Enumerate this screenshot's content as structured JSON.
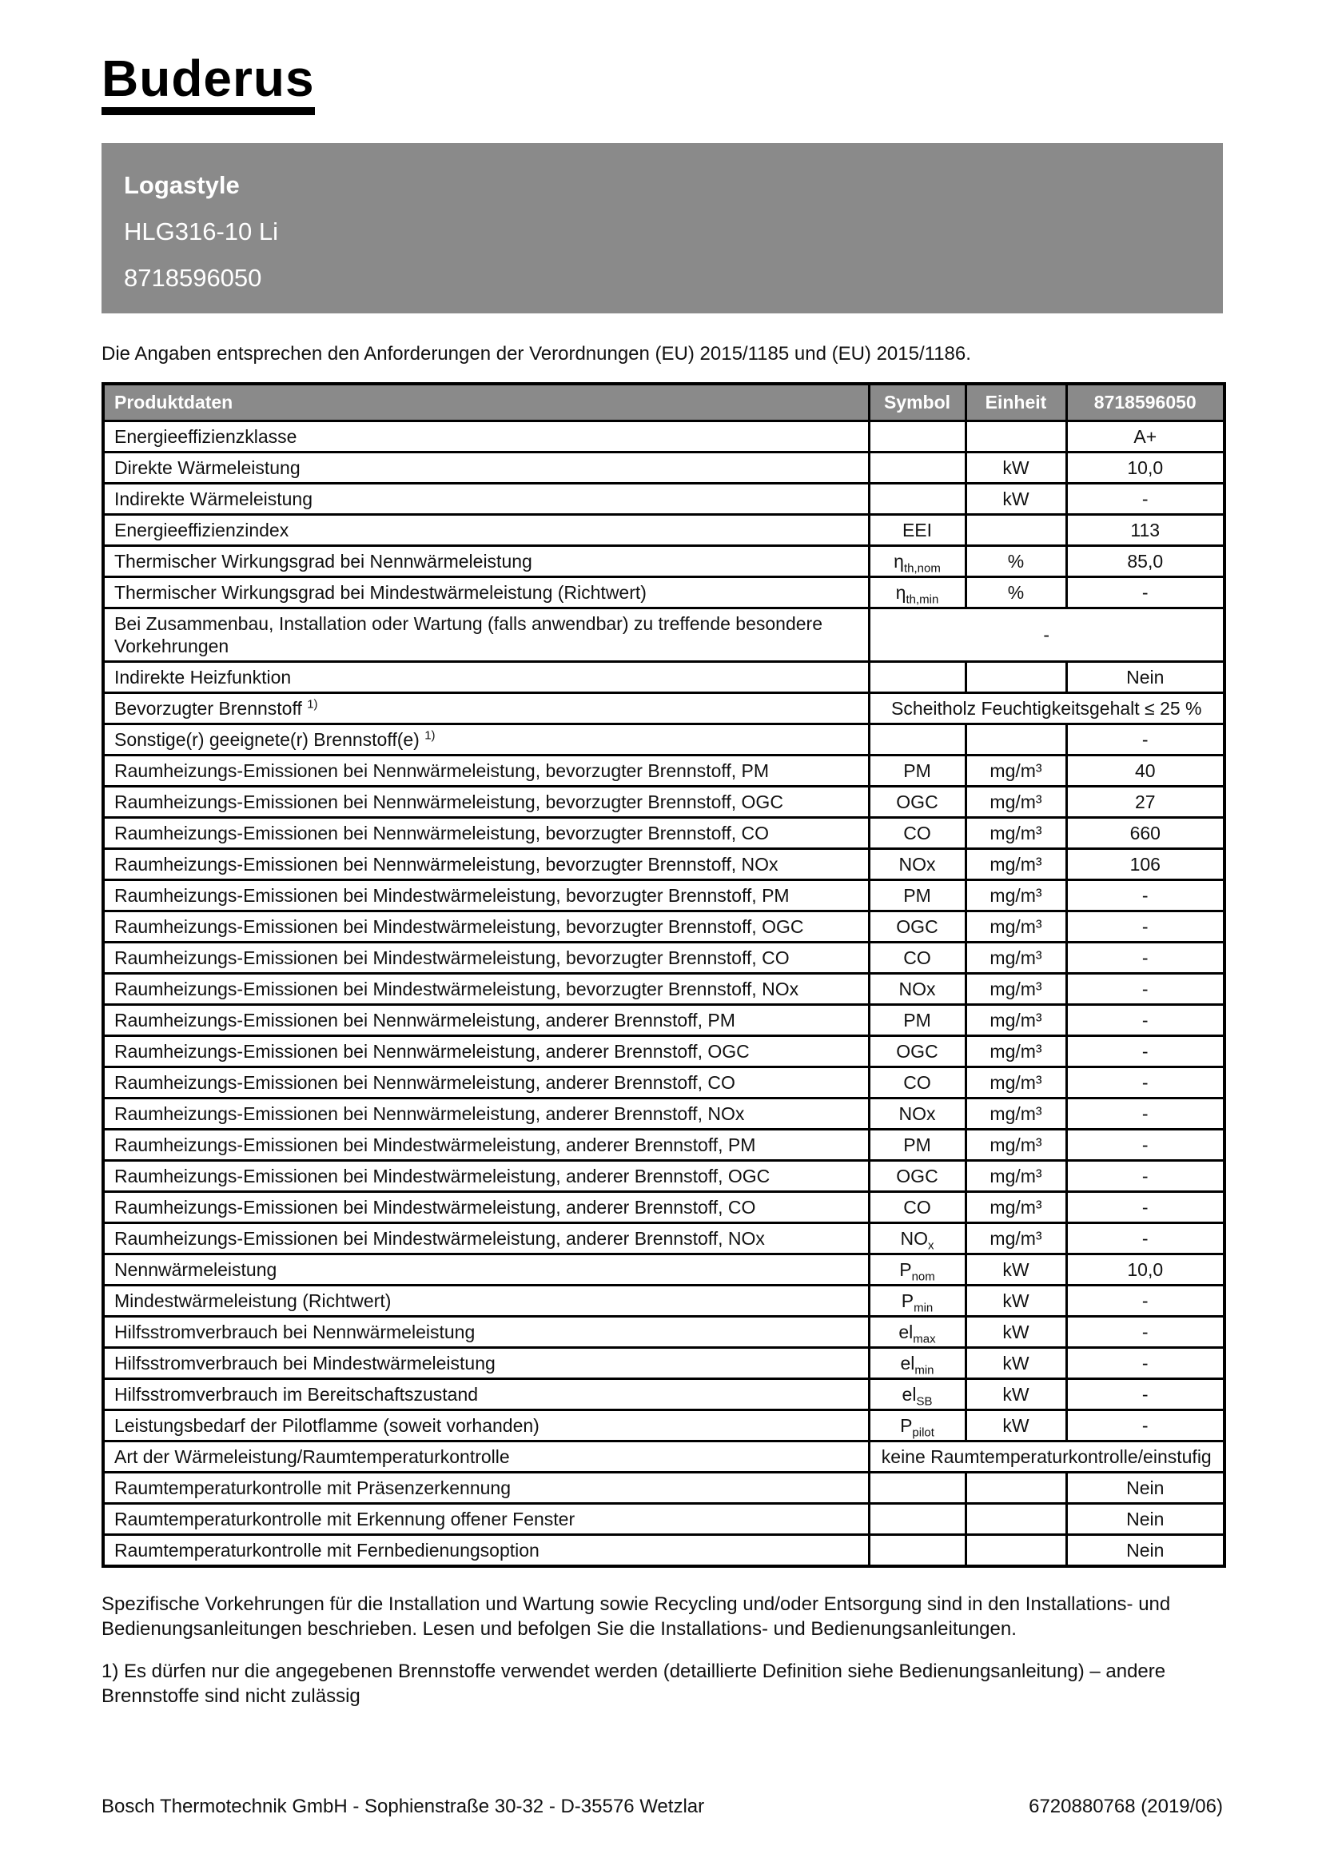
{
  "brand": {
    "logo_text": "Buderus"
  },
  "colors": {
    "header_gray": "#8a8a8a",
    "text": "#111111",
    "border": "#000000"
  },
  "product": {
    "series": "Logastyle",
    "model": "HLG316-10 Li",
    "order_number": "8718596050"
  },
  "intro": "Die Angaben entsprechen den Anforderungen der Verordnungen (EU) 2015/1185 und (EU) 2015/1186.",
  "table": {
    "headers": [
      "Produktdaten",
      "Symbol",
      "Einheit",
      "8718596050"
    ],
    "rows": [
      {
        "label": "Energieeffizienzklasse",
        "symbol": "",
        "symbol_sub": "",
        "unit": "",
        "value": "A+"
      },
      {
        "label": "Direkte Wärmeleistung",
        "symbol": "",
        "symbol_sub": "",
        "unit": "kW",
        "value": "10,0"
      },
      {
        "label": "Indirekte Wärmeleistung",
        "symbol": "",
        "symbol_sub": "",
        "unit": "kW",
        "value": "-"
      },
      {
        "label": "Energieeffizienzindex",
        "symbol": "EEI",
        "symbol_sub": "",
        "unit": "",
        "value": "113"
      },
      {
        "label": "Thermischer Wirkungsgrad bei Nennwärmeleistung",
        "symbol": "η",
        "symbol_sub": "th,nom",
        "unit": "%",
        "value": "85,0"
      },
      {
        "label": "Thermischer Wirkungsgrad bei Mindestwärmeleistung (Richtwert)",
        "symbol": "η",
        "symbol_sub": "th,min",
        "unit": "%",
        "value": "-"
      },
      {
        "label": "Bei Zusammenbau, Installation oder Wartung (falls anwendbar) zu treffende besondere Vorkehrungen",
        "span_value": "-"
      },
      {
        "label": "Indirekte Heizfunktion",
        "symbol": "",
        "symbol_sub": "",
        "unit": "",
        "value": "Nein"
      },
      {
        "label": "Bevorzugter Brennstoff",
        "label_sup": "1)",
        "span_value": "Scheitholz Feuchtigkeitsgehalt ≤ 25 %"
      },
      {
        "label": "Sonstige(r) geeignete(r) Brennstoff(e)",
        "label_sup": "1)",
        "symbol": "",
        "symbol_sub": "",
        "unit": "",
        "value": "-"
      },
      {
        "label": "Raumheizungs-Emissionen bei Nennwärmeleistung, bevorzugter Brennstoff, PM",
        "symbol": "PM",
        "symbol_sub": "",
        "unit": "mg/m³",
        "value": "40"
      },
      {
        "label": "Raumheizungs-Emissionen bei Nennwärmeleistung, bevorzugter Brennstoff, OGC",
        "symbol": "OGC",
        "symbol_sub": "",
        "unit": "mg/m³",
        "value": "27"
      },
      {
        "label": "Raumheizungs-Emissionen bei Nennwärmeleistung, bevorzugter Brennstoff, CO",
        "symbol": "CO",
        "symbol_sub": "",
        "unit": "mg/m³",
        "value": "660"
      },
      {
        "label": "Raumheizungs-Emissionen bei Nennwärmeleistung, bevorzugter Brennstoff, NOx",
        "symbol": "NOx",
        "symbol_sub": "",
        "unit": "mg/m³",
        "value": "106"
      },
      {
        "label": "Raumheizungs-Emissionen bei Mindestwärmeleistung, bevorzugter Brennstoff, PM",
        "symbol": "PM",
        "symbol_sub": "",
        "unit": "mg/m³",
        "value": "-"
      },
      {
        "label": "Raumheizungs-Emissionen bei Mindestwärmeleistung, bevorzugter Brennstoff, OGC",
        "symbol": "OGC",
        "symbol_sub": "",
        "unit": "mg/m³",
        "value": "-"
      },
      {
        "label": "Raumheizungs-Emissionen bei Mindestwärmeleistung, bevorzugter Brennstoff, CO",
        "symbol": "CO",
        "symbol_sub": "",
        "unit": "mg/m³",
        "value": "-"
      },
      {
        "label": "Raumheizungs-Emissionen bei Mindestwärmeleistung, bevorzugter Brennstoff, NOx",
        "symbol": "NOx",
        "symbol_sub": "",
        "unit": "mg/m³",
        "value": "-"
      },
      {
        "label": "Raumheizungs-Emissionen bei Nennwärmeleistung, anderer Brennstoff, PM",
        "symbol": "PM",
        "symbol_sub": "",
        "unit": "mg/m³",
        "value": "-"
      },
      {
        "label": "Raumheizungs-Emissionen bei Nennwärmeleistung, anderer Brennstoff, OGC",
        "symbol": "OGC",
        "symbol_sub": "",
        "unit": "mg/m³",
        "value": "-"
      },
      {
        "label": "Raumheizungs-Emissionen bei Nennwärmeleistung, anderer Brennstoff, CO",
        "symbol": "CO",
        "symbol_sub": "",
        "unit": "mg/m³",
        "value": "-"
      },
      {
        "label": "Raumheizungs-Emissionen bei Nennwärmeleistung, anderer Brennstoff, NOx",
        "symbol": "NOx",
        "symbol_sub": "",
        "unit": "mg/m³",
        "value": "-"
      },
      {
        "label": "Raumheizungs-Emissionen bei Mindestwärmeleistung, anderer Brennstoff, PM",
        "symbol": "PM",
        "symbol_sub": "",
        "unit": "mg/m³",
        "value": "-"
      },
      {
        "label": "Raumheizungs-Emissionen bei Mindestwärmeleistung, anderer Brennstoff, OGC",
        "symbol": "OGC",
        "symbol_sub": "",
        "unit": "mg/m³",
        "value": "-"
      },
      {
        "label": "Raumheizungs-Emissionen bei Mindestwärmeleistung, anderer Brennstoff, CO",
        "symbol": "CO",
        "symbol_sub": "",
        "unit": "mg/m³",
        "value": "-"
      },
      {
        "label": "Raumheizungs-Emissionen bei Mindestwärmeleistung, anderer Brennstoff, NOx",
        "symbol": "NO",
        "symbol_sub": "x",
        "unit": "mg/m³",
        "value": "-"
      },
      {
        "label": "Nennwärmeleistung",
        "symbol": "P",
        "symbol_sub": "nom",
        "unit": "kW",
        "value": "10,0"
      },
      {
        "label": "Mindestwärmeleistung (Richtwert)",
        "symbol": "P",
        "symbol_sub": "min",
        "unit": "kW",
        "value": "-"
      },
      {
        "label": "Hilfsstromverbrauch bei Nennwärmeleistung",
        "symbol": "el",
        "symbol_sub": "max",
        "unit": "kW",
        "value": "-"
      },
      {
        "label": "Hilfsstromverbrauch bei Mindestwärmeleistung",
        "symbol": "el",
        "symbol_sub": "min",
        "unit": "kW",
        "value": "-"
      },
      {
        "label": "Hilfsstromverbrauch im Bereitschaftszustand",
        "symbol": "el",
        "symbol_sub": "SB",
        "unit": "kW",
        "value": "-"
      },
      {
        "label": "Leistungsbedarf der Pilotflamme (soweit vorhanden)",
        "symbol": "P",
        "symbol_sub": "pilot",
        "unit": "kW",
        "value": "-"
      },
      {
        "label": "Art der Wärmeleistung/Raumtemperaturkontrolle",
        "span_value": "keine Raumtemperaturkontrolle/einstufig"
      },
      {
        "label": "Raumtemperaturkontrolle mit Präsenzerkennung",
        "symbol": "",
        "symbol_sub": "",
        "unit": "",
        "value": "Nein"
      },
      {
        "label": "Raumtemperaturkontrolle mit Erkennung offener Fenster",
        "symbol": "",
        "symbol_sub": "",
        "unit": "",
        "value": "Nein"
      },
      {
        "label": "Raumtemperaturkontrolle mit Fernbedienungsoption",
        "symbol": "",
        "symbol_sub": "",
        "unit": "",
        "value": "Nein"
      }
    ]
  },
  "notes": [
    "Spezifische Vorkehrungen für die Installation und Wartung sowie Recycling und/oder Entsorgung sind in den Installations- und Bedienungsanleitungen beschrieben. Lesen und befolgen Sie die Installations- und Bedienungsanleitungen.",
    "1) Es dürfen nur die angegebenen Brennstoffe verwendet werden (detaillierte Definition siehe Bedienungsanleitung) – andere Brennstoffe sind nicht zulässig"
  ],
  "footer": {
    "left": "Bosch Thermotechnik GmbH - Sophienstraße 30-32 - D-35576 Wetzlar",
    "right": "6720880768 (2019/06)"
  }
}
